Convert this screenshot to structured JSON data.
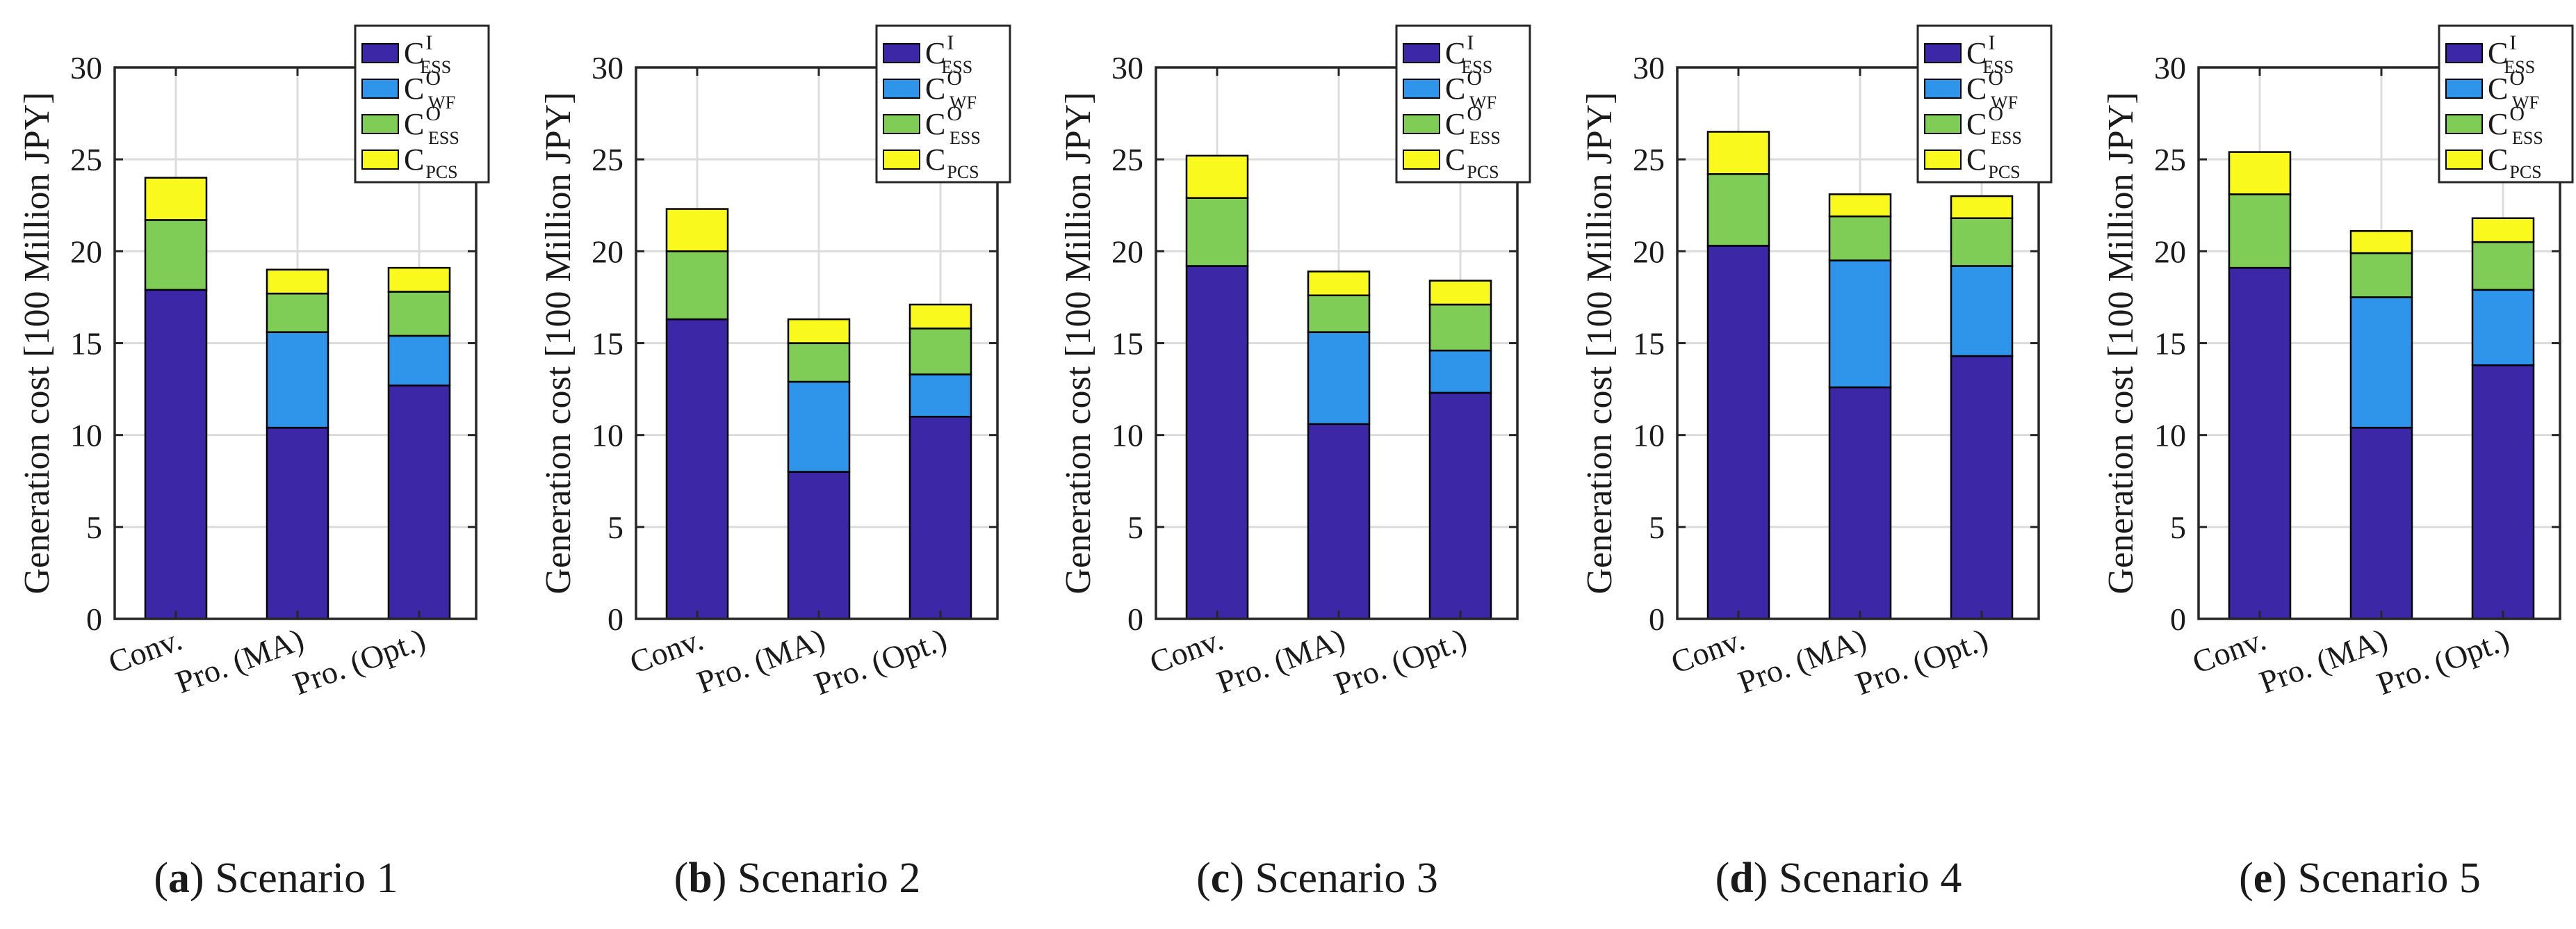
{
  "chart_data": [
    {
      "type": "bar",
      "stacked": true,
      "caption_letter": "a",
      "caption_text": "Scenario 1",
      "categories": [
        "Conv.",
        "Pro. (MA)",
        "Pro. (Opt.)"
      ],
      "ylabel": "Generation cost [100 Million JPY]",
      "xlabel": "",
      "ylim": [
        0,
        30
      ],
      "yticks": [
        "0",
        "5",
        "10",
        "15",
        "20",
        "25",
        "30"
      ],
      "grid": true,
      "legend_position": "top-right",
      "series": [
        {
          "name": "C^I_ESS",
          "values": [
            17.9,
            10.4,
            12.7
          ]
        },
        {
          "name": "C^O_WF",
          "values": [
            0,
            5.2,
            2.7
          ]
        },
        {
          "name": "C^O_ESS",
          "values": [
            3.8,
            2.1,
            2.4
          ]
        },
        {
          "name": "C_PCS",
          "values": [
            2.3,
            1.3,
            1.3
          ]
        }
      ]
    },
    {
      "type": "bar",
      "stacked": true,
      "caption_letter": "b",
      "caption_text": "Scenario 2",
      "categories": [
        "Conv.",
        "Pro. (MA)",
        "Pro. (Opt.)"
      ],
      "ylabel": "Generation cost [100 Million JPY]",
      "xlabel": "",
      "ylim": [
        0,
        30
      ],
      "yticks": [
        "0",
        "5",
        "10",
        "15",
        "20",
        "25",
        "30"
      ],
      "grid": true,
      "legend_position": "top-right",
      "series": [
        {
          "name": "C^I_ESS",
          "values": [
            16.3,
            8.0,
            11.0
          ]
        },
        {
          "name": "C^O_WF",
          "values": [
            0,
            4.9,
            2.3
          ]
        },
        {
          "name": "C^O_ESS",
          "values": [
            3.7,
            2.1,
            2.5
          ]
        },
        {
          "name": "C_PCS",
          "values": [
            2.3,
            1.3,
            1.3
          ]
        }
      ]
    },
    {
      "type": "bar",
      "stacked": true,
      "caption_letter": "c",
      "caption_text": "Scenario 3",
      "categories": [
        "Conv.",
        "Pro. (MA)",
        "Pro. (Opt.)"
      ],
      "ylabel": "Generation cost [100 Million JPY]",
      "xlabel": "",
      "ylim": [
        0,
        30
      ],
      "yticks": [
        "0",
        "5",
        "10",
        "15",
        "20",
        "25",
        "30"
      ],
      "grid": true,
      "legend_position": "top-right",
      "series": [
        {
          "name": "C^I_ESS",
          "values": [
            19.2,
            10.6,
            12.3
          ]
        },
        {
          "name": "C^O_WF",
          "values": [
            0,
            5.0,
            2.3
          ]
        },
        {
          "name": "C^O_ESS",
          "values": [
            3.7,
            2.0,
            2.5
          ]
        },
        {
          "name": "C_PCS",
          "values": [
            2.3,
            1.3,
            1.3
          ]
        }
      ]
    },
    {
      "type": "bar",
      "stacked": true,
      "caption_letter": "d",
      "caption_text": "Scenario 4",
      "categories": [
        "Conv.",
        "Pro. (MA)",
        "Pro. (Opt.)"
      ],
      "ylabel": "Generation cost [100 Million JPY]",
      "xlabel": "",
      "ylim": [
        0,
        30
      ],
      "yticks": [
        "0",
        "5",
        "10",
        "15",
        "20",
        "25",
        "30"
      ],
      "grid": true,
      "legend_position": "top-right",
      "series": [
        {
          "name": "C^I_ESS",
          "values": [
            20.3,
            12.6,
            14.3
          ]
        },
        {
          "name": "C^O_WF",
          "values": [
            0,
            6.9,
            4.9
          ]
        },
        {
          "name": "C^O_ESS",
          "values": [
            3.9,
            2.4,
            2.6
          ]
        },
        {
          "name": "C_PCS",
          "values": [
            2.3,
            1.2,
            1.2
          ]
        }
      ]
    },
    {
      "type": "bar",
      "stacked": true,
      "caption_letter": "e",
      "caption_text": "Scenario 5",
      "categories": [
        "Conv.",
        "Pro. (MA)",
        "Pro. (Opt.)"
      ],
      "ylabel": "Generation cost [100 Million JPY]",
      "xlabel": "",
      "ylim": [
        0,
        30
      ],
      "yticks": [
        "0",
        "5",
        "10",
        "15",
        "20",
        "25",
        "30"
      ],
      "grid": true,
      "legend_position": "top-right",
      "series": [
        {
          "name": "C^I_ESS",
          "values": [
            19.1,
            10.4,
            13.8
          ]
        },
        {
          "name": "C^O_WF",
          "values": [
            0,
            7.1,
            4.1
          ]
        },
        {
          "name": "C^O_ESS",
          "values": [
            4.0,
            2.4,
            2.6
          ]
        },
        {
          "name": "C_PCS",
          "values": [
            2.3,
            1.2,
            1.3
          ]
        }
      ]
    }
  ],
  "legend": [
    {
      "main": "C",
      "sup": "I",
      "sub": "ESS",
      "color": "#3c27a6"
    },
    {
      "main": "C",
      "sup": "O",
      "sub": "WF",
      "color": "#2e95ea"
    },
    {
      "main": "C",
      "sup": "O",
      "sub": "ESS",
      "color": "#7fcc57"
    },
    {
      "main": "C",
      "sup": "",
      "sub": "PCS",
      "color": "#f9f91d"
    }
  ],
  "colors": {
    "grid": "#dcdcdc",
    "axis": "#262626",
    "text": "#1a1a1a"
  }
}
